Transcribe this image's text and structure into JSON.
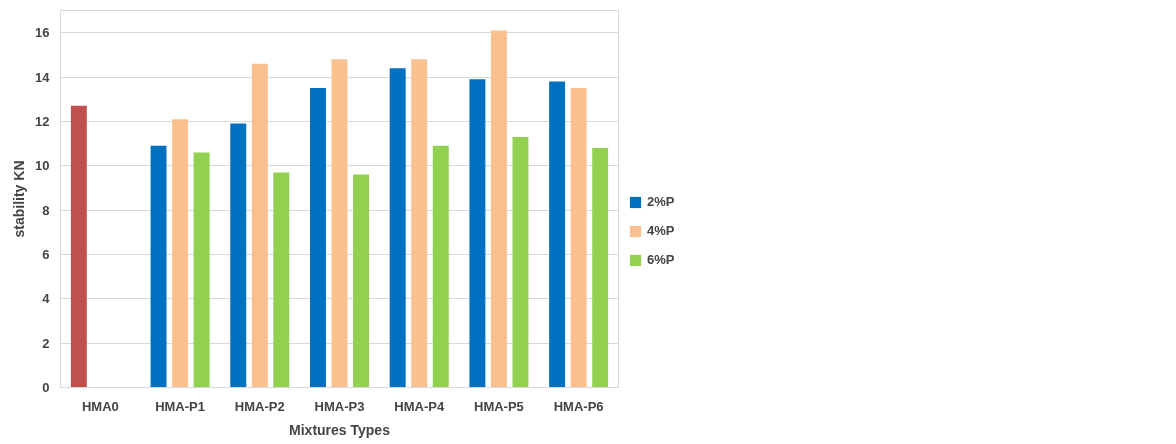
{
  "chart_data": {
    "type": "bar",
    "xlabel": "Mixtures Types",
    "ylabel": "stability KN",
    "categories": [
      "HMA0",
      "HMA-P1",
      "HMA-P2",
      "HMA-P3",
      "HMA-P4",
      "HMA-P5",
      "HMA-P6"
    ],
    "series": [
      {
        "name": "2%P",
        "color": "#0070c0",
        "colors": [
          "#c0504d",
          "#0070c0",
          "#0070c0",
          "#0070c0",
          "#0070c0",
          "#0070c0",
          "#0070c0"
        ],
        "values": [
          12.7,
          10.9,
          11.9,
          13.5,
          14.4,
          13.9,
          13.8
        ]
      },
      {
        "name": "4%P",
        "color": "#fac090",
        "values": [
          null,
          12.1,
          14.6,
          14.8,
          14.8,
          16.1,
          13.5
        ]
      },
      {
        "name": "6%P",
        "color": "#92d050",
        "values": [
          null,
          10.6,
          9.7,
          9.6,
          10.9,
          11.3,
          10.8
        ]
      }
    ],
    "ylim": [
      0,
      17
    ],
    "yticks": [
      0,
      2,
      4,
      6,
      8,
      10,
      12,
      14,
      16
    ],
    "grid": "y",
    "legend": "right"
  }
}
